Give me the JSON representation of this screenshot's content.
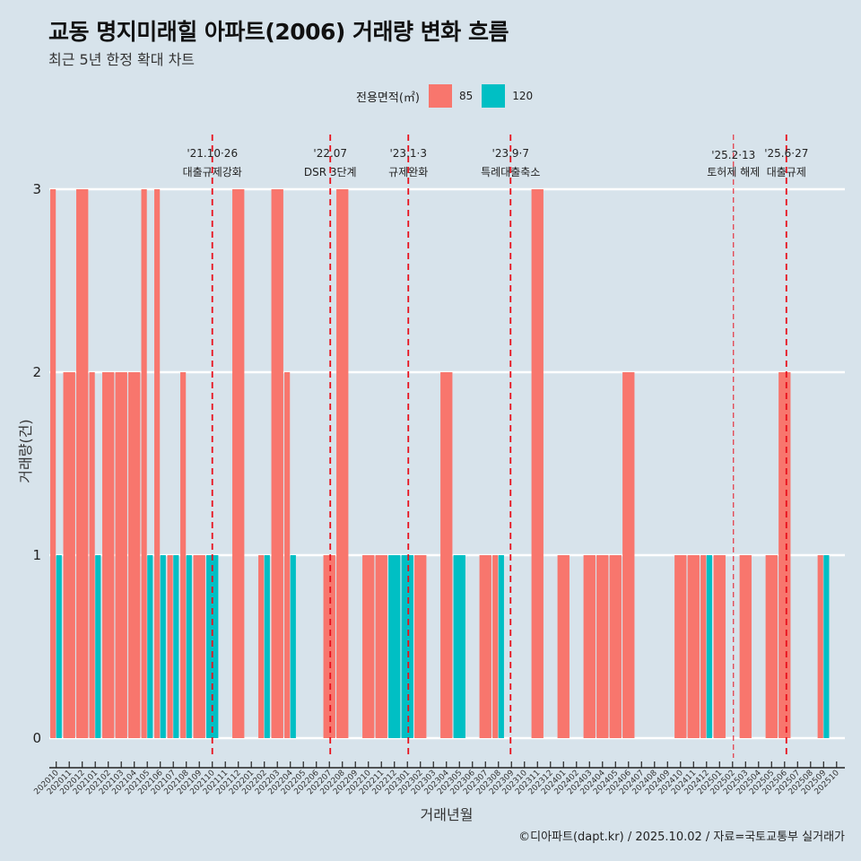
{
  "title": "교동 명지미래힐 아파트(2006) 거래량 변화 흐름",
  "subtitle": "최근 5년 한정 확대 차트",
  "legend": {
    "title": "전용면적(㎡)",
    "items": [
      {
        "label": "85",
        "color": "#F8766D"
      },
      {
        "label": "120",
        "color": "#00BFC4"
      }
    ]
  },
  "caption": "©디아파트(dapt.kr) / 2025.10.02 / 자료=국토교통부 실거래가",
  "chart_data": {
    "type": "bar",
    "title": "교동 명지미래힐 아파트(2006) 거래량 변화 흐름",
    "subtitle": "최근 5년 한정 확대 차트",
    "xlabel": "거래년월",
    "ylabel": "거래량(건)",
    "ylim": [
      0,
      3
    ],
    "yticks": [
      0,
      1,
      2,
      3
    ],
    "grid": true,
    "legend_position": "top",
    "categories": [
      "202010",
      "202011",
      "202012",
      "202101",
      "202102",
      "202103",
      "202104",
      "202105",
      "202106",
      "202107",
      "202108",
      "202109",
      "202110",
      "202111",
      "202112",
      "202201",
      "202202",
      "202203",
      "202204",
      "202205",
      "202206",
      "202207",
      "202208",
      "202209",
      "202210",
      "202211",
      "202212",
      "202301",
      "202302",
      "202303",
      "202304",
      "202305",
      "202306",
      "202307",
      "202308",
      "202309",
      "202310",
      "202311",
      "202312",
      "202401",
      "202402",
      "202403",
      "202404",
      "202405",
      "202406",
      "202407",
      "202408",
      "202409",
      "202410",
      "202411",
      "202412",
      "202501",
      "202502",
      "202503",
      "202504",
      "202505",
      "202506",
      "202507",
      "202508",
      "202509",
      "202510"
    ],
    "series": [
      {
        "name": "85",
        "color": "#F8766D",
        "values": [
          3,
          2,
          3,
          2,
          2,
          2,
          2,
          3,
          3,
          1,
          2,
          1,
          0,
          0,
          3,
          0,
          1,
          3,
          2,
          0,
          0,
          1,
          3,
          0,
          1,
          1,
          0,
          0,
          1,
          0,
          2,
          0,
          0,
          1,
          1,
          0,
          0,
          3,
          0,
          1,
          0,
          1,
          1,
          1,
          2,
          0,
          0,
          0,
          1,
          1,
          1,
          1,
          0,
          1,
          0,
          1,
          2,
          0,
          0,
          1,
          0
        ]
      },
      {
        "name": "120",
        "color": "#00BFC4",
        "values": [
          1,
          0,
          0,
          1,
          0,
          0,
          0,
          1,
          1,
          1,
          1,
          0,
          1,
          0,
          0,
          0,
          1,
          0,
          1,
          0,
          0,
          0,
          0,
          0,
          0,
          0,
          1,
          1,
          0,
          0,
          0,
          1,
          0,
          0,
          1,
          0,
          0,
          0,
          0,
          0,
          0,
          0,
          0,
          0,
          0,
          0,
          0,
          0,
          0,
          0,
          1,
          0,
          0,
          0,
          0,
          0,
          0,
          0,
          0,
          1,
          0
        ]
      }
    ],
    "annotations": [
      {
        "x": "202110",
        "date": "'21.10·26",
        "label": "대출규제강화",
        "style": "dashed"
      },
      {
        "x": "202207",
        "date": "'22.07",
        "label": "DSR 3단계",
        "style": "dashed"
      },
      {
        "x": "202301",
        "date": "'23.1·3",
        "label": "규제완화",
        "style": "dashed"
      },
      {
        "x": "202309",
        "date": "'23.9·7",
        "label": "특례대출축소",
        "style": "dashed"
      },
      {
        "x": "202502",
        "date": "'25.2·13",
        "label": "토허제 해제",
        "style": "thin-dashed"
      },
      {
        "x": "202506",
        "date": "'25.6·27",
        "label": "대출규제",
        "style": "dashed"
      }
    ]
  }
}
